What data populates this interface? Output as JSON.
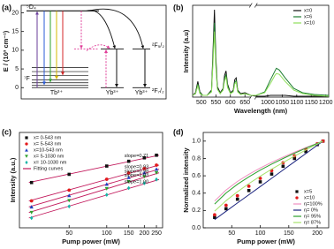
{
  "diagram": {
    "title": "(a)",
    "y_label": "E / (10³ cm⁻¹)",
    "ylim": [
      -3,
      22
    ],
    "yticks": [
      0,
      5,
      10,
      15,
      20
    ],
    "tb": {
      "levels": [
        {
          "label": "⁵D₄",
          "energy": 20.5
        }
      ],
      "manifold": [
        0,
        0.6,
        1.3,
        2.1,
        3.2,
        4.3,
        5.4
      ],
      "manifold_label": "⁷F"
    },
    "yb_levels": [
      {
        "label": "²F₅/₂",
        "energy": 10.3
      },
      {
        "label": "²F₇/₂",
        "energy": 0
      }
    ],
    "ions": [
      "Tb³⁺",
      "Yb³⁺",
      "Yb³⁺"
    ]
  },
  "chart_data": [
    {
      "type": "line",
      "title": "(b)",
      "x_label": "Wavelength (nm)",
      "y_label": "Intensity (a.u)",
      "x": [
        470,
        480,
        488,
        495,
        505,
        520,
        535,
        540,
        545,
        550,
        555,
        565,
        575,
        580,
        585,
        590,
        600,
        610,
        615,
        620,
        625,
        635,
        650,
        670,
        960,
        990,
        1010,
        1025,
        1030,
        1040,
        1060,
        1090,
        1120,
        1160,
        1210
      ],
      "series": [
        {
          "name": "x=0",
          "color": "#111111",
          "values": [
            0.02,
            0.05,
            0.18,
            0.06,
            0.02,
            0.02,
            0.08,
            0.5,
            1.0,
            0.45,
            0.12,
            0.05,
            0.1,
            0.25,
            0.3,
            0.15,
            0.05,
            0.08,
            0.2,
            0.22,
            0.08,
            0.04,
            0.05,
            0.02,
            0.01,
            0.01,
            0.02,
            0.02,
            0.02,
            0.02,
            0.02,
            0.01,
            0.01,
            0.01,
            0.01
          ]
        },
        {
          "name": "x=6",
          "color": "#1e7d32",
          "values": [
            0.02,
            0.04,
            0.15,
            0.05,
            0.02,
            0.02,
            0.07,
            0.43,
            0.85,
            0.38,
            0.1,
            0.04,
            0.09,
            0.21,
            0.26,
            0.13,
            0.04,
            0.07,
            0.17,
            0.19,
            0.07,
            0.03,
            0.04,
            0.02,
            0.02,
            0.06,
            0.2,
            0.3,
            0.33,
            0.31,
            0.22,
            0.1,
            0.05,
            0.03,
            0.02
          ]
        },
        {
          "name": "x=10",
          "color": "#8ee05a",
          "values": [
            0.02,
            0.04,
            0.13,
            0.04,
            0.02,
            0.02,
            0.06,
            0.38,
            0.75,
            0.34,
            0.09,
            0.04,
            0.08,
            0.19,
            0.23,
            0.11,
            0.04,
            0.06,
            0.15,
            0.17,
            0.06,
            0.03,
            0.04,
            0.02,
            0.02,
            0.05,
            0.16,
            0.25,
            0.27,
            0.26,
            0.18,
            0.08,
            0.04,
            0.02,
            0.01
          ]
        }
      ],
      "xlim": [
        470,
        1210
      ],
      "axis_break": [
        670,
        960
      ],
      "xticks": [
        500,
        550,
        600,
        650,
        1000,
        1050,
        1100,
        1150,
        1200
      ],
      "ylim": [
        0,
        1.05
      ],
      "legend": "upper right"
    },
    {
      "type": "scatter",
      "title": "(c)",
      "x_label": "Pump power (mW)",
      "y_label": "Intensity (a.u.)",
      "xscale": "log",
      "yscale": "log",
      "x": [
        25,
        50,
        100,
        150,
        200,
        250
      ],
      "series": [
        {
          "name": "x= 0-543 nm",
          "color": "#111111",
          "marker": "square",
          "annotation": "slope=0.71",
          "values": [
            15,
            24.5,
            40.2,
            53.5,
            65.7,
            76.9
          ]
        },
        {
          "name": "x= 5-543 nm",
          "color": "#e31a1c",
          "marker": "circle",
          "annotation": "slope=0.93",
          "values": [
            5,
            9.5,
            18.2,
            26.5,
            34.6,
            42.6
          ]
        },
        {
          "name": "x=10-543 nm",
          "color": "#1f3fbf",
          "marker": "triangle-up",
          "annotation": "slope=0.98",
          "values": [
            3.5,
            6.9,
            13.6,
            20.3,
            26.9,
            33.4
          ]
        },
        {
          "name": "x= 5-1030 nm",
          "color": "#2ca02c",
          "marker": "triangle-down",
          "annotation": "slope=1.03",
          "values": [
            2.5,
            5.1,
            10.4,
            15.8,
            21.3,
            26.8
          ]
        },
        {
          "name": "x= 10-1030 nm",
          "color": "#17b5a8",
          "marker": "diamond",
          "annotation": "slope=1.00",
          "values": [
            1.8,
            3.6,
            7.2,
            10.8,
            14.4,
            18
          ]
        }
      ],
      "fit": {
        "name": "Fitting curves",
        "color": "#c2185b"
      },
      "xlim": [
        20,
        280
      ],
      "xticks": [
        50,
        100,
        150,
        200,
        250
      ],
      "ylim": [
        1,
        300
      ],
      "legend": "upper left"
    },
    {
      "type": "line",
      "title": "(d)",
      "x_label": "Pump power (mW)",
      "y_label": "Normalized intensity",
      "x": [
        20,
        40,
        60,
        80,
        100,
        120,
        140,
        160,
        180,
        200,
        210
      ],
      "series": [
        {
          "name": "x=5",
          "color": "#111111",
          "marker": "square",
          "values": [
            0.12,
            0.22,
            0.33,
            0.43,
            0.53,
            0.62,
            0.71,
            0.8,
            0.88,
            0.96,
            1
          ]
        },
        {
          "name": "x=10",
          "color": "#e31a1c",
          "marker": "circle",
          "values": [
            0.15,
            0.26,
            0.37,
            0.48,
            0.57,
            0.66,
            0.75,
            0.83,
            0.91,
            0.97,
            1
          ]
        },
        {
          "name": "η=100%",
          "color": "#f08fc0",
          "values": [
            0.309,
            0.436,
            0.535,
            0.617,
            0.69,
            0.756,
            0.816,
            0.873,
            0.926,
            0.976,
            1
          ]
        },
        {
          "name": "η= 0%",
          "color": "#1a237e",
          "values": [
            0.095,
            0.19,
            0.286,
            0.381,
            0.476,
            0.571,
            0.667,
            0.762,
            0.857,
            0.952,
            1
          ]
        },
        {
          "name": "η= 95%",
          "color": "#2ca02c",
          "values": [
            0.274,
            0.401,
            0.502,
            0.588,
            0.665,
            0.735,
            0.8,
            0.861,
            0.919,
            0.973,
            1
          ]
        },
        {
          "name": "η= 87%",
          "color": "#a6e36b",
          "values": [
            0.193,
            0.313,
            0.416,
            0.509,
            0.595,
            0.676,
            0.753,
            0.827,
            0.898,
            0.966,
            1
          ]
        }
      ],
      "xlim": [
        0,
        220
      ],
      "xticks": [
        50,
        100,
        150,
        200
      ],
      "ylim": [
        0,
        1.1
      ],
      "yticks": [
        {
          "value": 0,
          "label": "0.0"
        },
        0.2,
        0.4,
        0.6,
        0.8,
        {
          "value": 1,
          "label": "1.0"
        }
      ],
      "legend": "lower right"
    }
  ]
}
